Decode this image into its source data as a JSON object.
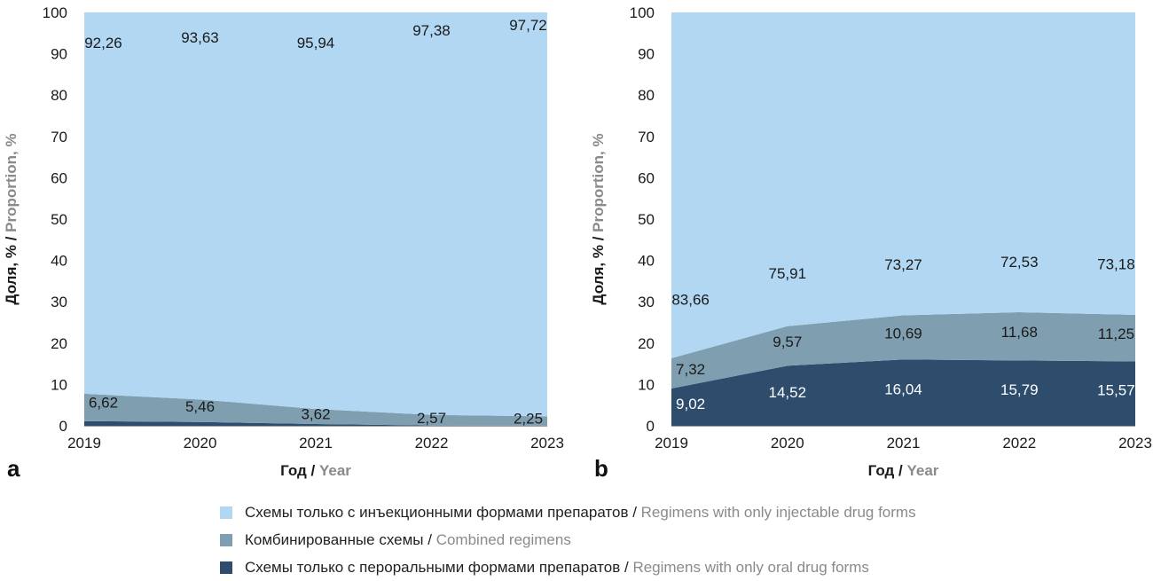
{
  "colors": {
    "injectable": "#b1d7f3",
    "combined": "#7f9fb1",
    "oral": "#2e4d6d"
  },
  "legend": [
    {
      "key": "injectable",
      "ru": "Схемы только с инъекционными формами препаратов",
      "en": "Regimens with only injectable drug forms"
    },
    {
      "key": "combined",
      "ru": "Комбинированные схемы",
      "en": "Combined regimens"
    },
    {
      "key": "oral",
      "ru": "Схемы только с пероральными формами препаратов",
      "en": "Regimens with only oral drug forms"
    }
  ],
  "chart_data": [
    {
      "type": "area",
      "stacked": true,
      "panel": "a",
      "x": [
        "2019",
        "2020",
        "2021",
        "2022",
        "2023"
      ],
      "ylim": [
        0,
        100
      ],
      "yticks": [
        0,
        10,
        20,
        30,
        40,
        50,
        60,
        70,
        80,
        90,
        100
      ],
      "ylabel": {
        "ru": "Доля, %",
        "sep": " / ",
        "en": "Proportion, %"
      },
      "xlabel": {
        "ru": "Год",
        "sep": " / ",
        "en": "Year"
      },
      "series": [
        {
          "key": "oral",
          "values": [
            1.12,
            0.91,
            0.44,
            0.05,
            0.03
          ],
          "labels": [
            "",
            "",
            "",
            "",
            ""
          ]
        },
        {
          "key": "combined",
          "values": [
            6.62,
            5.46,
            3.62,
            2.57,
            2.25
          ],
          "labels": [
            "6,62",
            "5,46",
            "3,62",
            "2,57",
            "2,25"
          ]
        },
        {
          "key": "injectable",
          "values": [
            92.26,
            93.63,
            95.94,
            97.38,
            97.72
          ],
          "labels": [
            "92,26",
            "93,63",
            "95,94",
            "97,38",
            "97,72"
          ]
        }
      ]
    },
    {
      "type": "area",
      "stacked": true,
      "panel": "b",
      "x": [
        "2019",
        "2020",
        "2021",
        "2022",
        "2023"
      ],
      "ylim": [
        0,
        100
      ],
      "yticks": [
        0,
        10,
        20,
        30,
        40,
        50,
        60,
        70,
        80,
        90,
        100
      ],
      "ylabel": {
        "ru": "Доля, %",
        "sep": " / ",
        "en": "Proportion, %"
      },
      "xlabel": {
        "ru": "Год",
        "sep": " / ",
        "en": "Year"
      },
      "series": [
        {
          "key": "oral",
          "values": [
            9.02,
            14.52,
            16.04,
            15.79,
            15.57
          ],
          "labels": [
            "9,02",
            "14,52",
            "16,04",
            "15,79",
            "15,57"
          ]
        },
        {
          "key": "combined",
          "values": [
            7.32,
            9.57,
            10.69,
            11.68,
            11.25
          ],
          "labels": [
            "7,32",
            "9,57",
            "10,69",
            "11,68",
            "11,25"
          ]
        },
        {
          "key": "injectable",
          "values": [
            83.66,
            75.91,
            73.27,
            72.53,
            73.18
          ],
          "labels": [
            "83,66",
            "75,91",
            "73,27",
            "72,53",
            "73,18"
          ]
        }
      ]
    }
  ]
}
